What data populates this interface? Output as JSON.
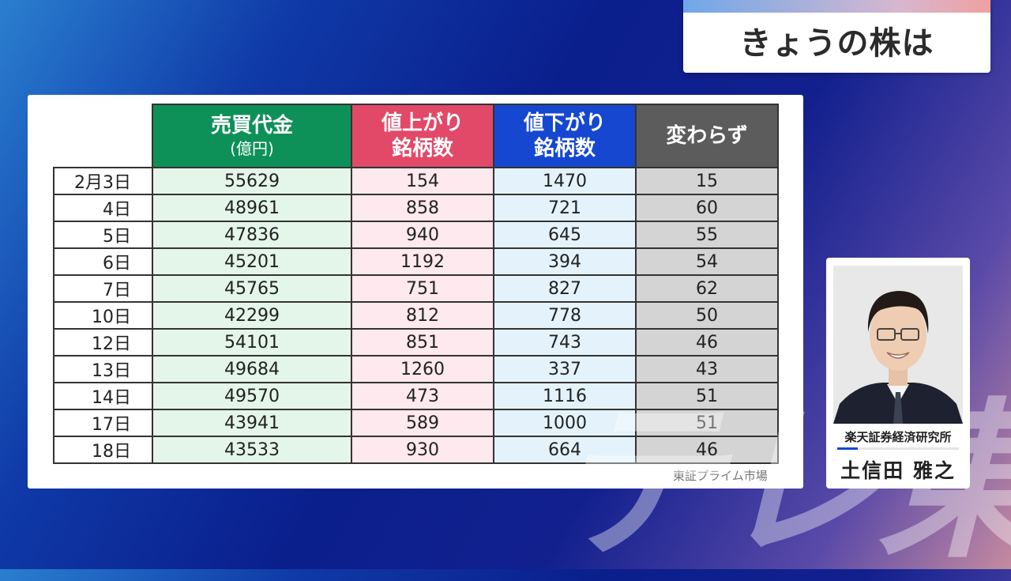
{
  "title": "きょうの株は",
  "table": {
    "headers": [
      {
        "line1": "売買代金",
        "line2": "(億円)"
      },
      {
        "line1": "値上がり",
        "line2": "銘柄数"
      },
      {
        "line1": "値下がり",
        "line2": "銘柄数"
      },
      {
        "line1": "変わらず",
        "line2": ""
      }
    ],
    "rows": [
      {
        "date": "2月3日",
        "volume": "55629",
        "advancers": "154",
        "decliners": "1470",
        "unchanged": "15"
      },
      {
        "date": "4日",
        "volume": "48961",
        "advancers": "858",
        "decliners": "721",
        "unchanged": "60"
      },
      {
        "date": "5日",
        "volume": "47836",
        "advancers": "940",
        "decliners": "645",
        "unchanged": "55"
      },
      {
        "date": "6日",
        "volume": "45201",
        "advancers": "1192",
        "decliners": "394",
        "unchanged": "54"
      },
      {
        "date": "7日",
        "volume": "45765",
        "advancers": "751",
        "decliners": "827",
        "unchanged": "62"
      },
      {
        "date": "10日",
        "volume": "42299",
        "advancers": "812",
        "decliners": "778",
        "unchanged": "50"
      },
      {
        "date": "12日",
        "volume": "54101",
        "advancers": "851",
        "decliners": "743",
        "unchanged": "46"
      },
      {
        "date": "13日",
        "volume": "49684",
        "advancers": "1260",
        "decliners": "337",
        "unchanged": "43"
      },
      {
        "date": "14日",
        "volume": "49570",
        "advancers": "473",
        "decliners": "1116",
        "unchanged": "51"
      },
      {
        "date": "17日",
        "volume": "43941",
        "advancers": "589",
        "decliners": "1000",
        "unchanged": "51"
      },
      {
        "date": "18日",
        "volume": "43533",
        "advancers": "930",
        "decliners": "664",
        "unchanged": "46"
      }
    ]
  },
  "source": "東証プライム市場",
  "analyst": {
    "firm": "楽天証券経済研究所",
    "name": "土信田 雅之"
  },
  "watermark": "テレ東",
  "colors": {
    "volume_header": "#0e9158",
    "advancers_header": "#e24968",
    "decliners_header": "#1547d1",
    "unchanged_header": "#5c5c5c"
  }
}
